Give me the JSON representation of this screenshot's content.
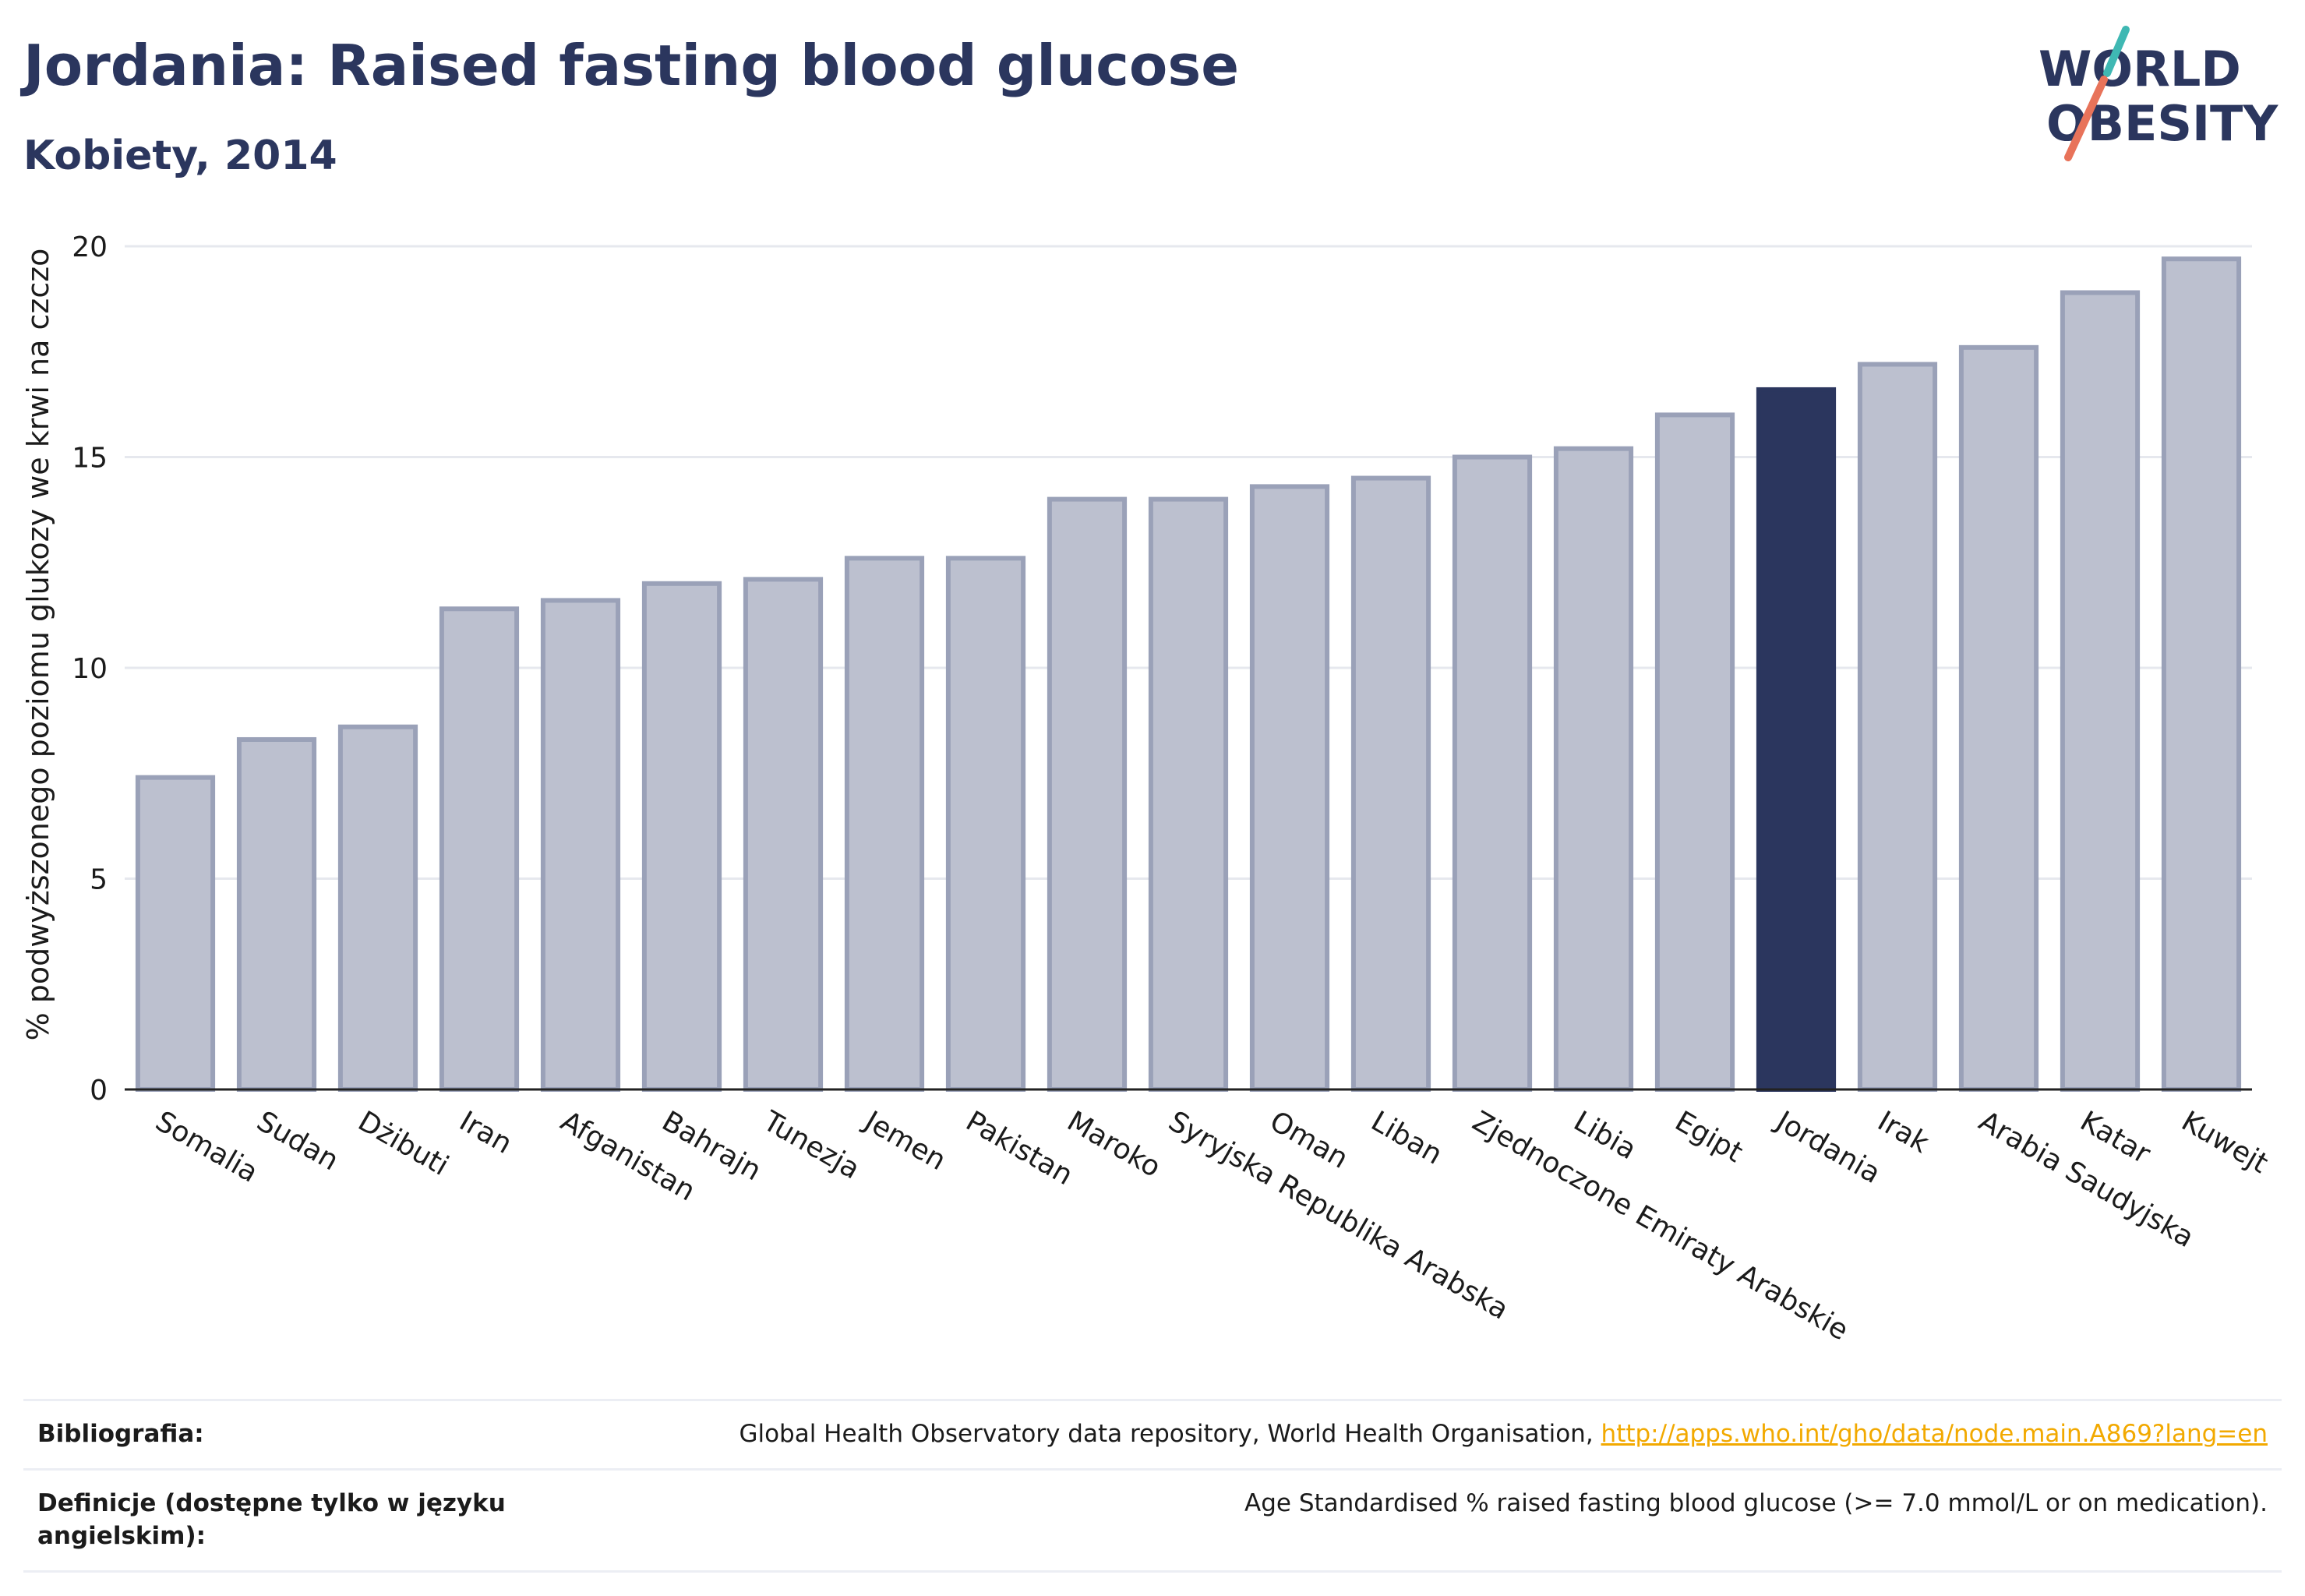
{
  "header": {
    "title": "Jordania: Raised fasting blood glucose",
    "subtitle": "Kobiety, 2014"
  },
  "logo": {
    "line1": "WORLD",
    "line2": "OBESITY",
    "text_color": "#2b365e",
    "slash_colors": [
      "#3fb8b3",
      "#e8735a"
    ]
  },
  "colors": {
    "bar": "#bcc0cf",
    "bar_border": "#9aa1b8",
    "highlight": "#2b365e",
    "grid": "#e6e8ee",
    "text": "#2b365e"
  },
  "chart_data": {
    "type": "bar",
    "ylabel": "% podwyższonego poziomu glukozy we krwi na czczo",
    "xlabel": "",
    "ylim": [
      0,
      20
    ],
    "yticks": [
      0,
      5,
      10,
      15,
      20
    ],
    "categories": [
      "Somalia",
      "Sudan",
      "Dżibuti",
      "Iran",
      "Afganistan",
      "Bahrajn",
      "Tunezja",
      "Jemen",
      "Pakistan",
      "Maroko",
      "Syryjska Republika Arabska",
      "Oman",
      "Liban",
      "Zjednoczone Emiraty Arabskie",
      "Libia",
      "Egipt",
      "Jordania",
      "Irak",
      "Arabia Saudyjska",
      "Katar",
      "Kuwejt"
    ],
    "values": [
      7.4,
      8.3,
      8.6,
      11.4,
      11.6,
      12.0,
      12.1,
      12.6,
      12.6,
      14.0,
      14.0,
      14.3,
      14.5,
      15.0,
      15.2,
      16.0,
      16.6,
      17.2,
      17.6,
      18.9,
      19.7
    ],
    "highlight": "Jordania",
    "grid": true
  },
  "footer": {
    "bibliography_label": "Bibliografia:",
    "bibliography_text": "Global Health Observatory data repository, World Health Organisation, ",
    "bibliography_link": "http://apps.who.int/gho/data/node.main.A869?lang=en",
    "definition_label": "Definicje (dostępne tylko w języku angielskim):",
    "definition_text": "Age Standardised % raised fasting blood glucose (>= 7.0 mmol/L or on medication)."
  }
}
